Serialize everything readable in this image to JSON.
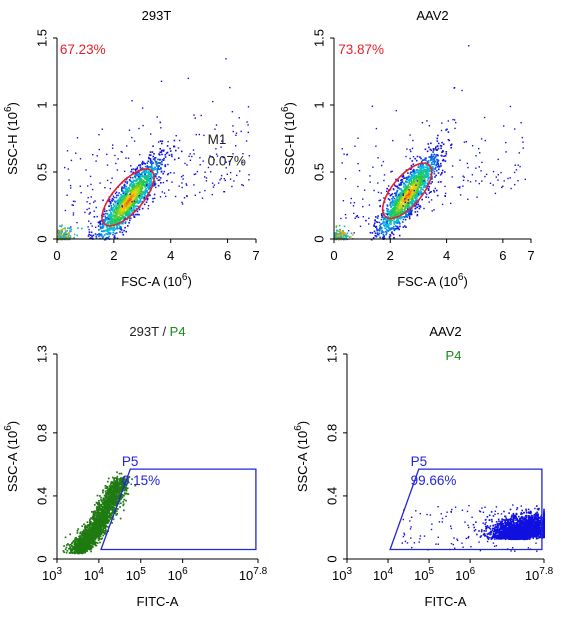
{
  "colors": {
    "gate_red": "#e8202a",
    "gate_blue": "#2424d8",
    "gate_green": "#1a8a1a",
    "gate_black": "#222222",
    "dot_blue": "#1010e0",
    "dot_green": "#1f7a12",
    "axis": "#000000"
  },
  "chart_data": [
    {
      "type": "scatter",
      "title": "293T",
      "title_parts": [],
      "xlabel": "FSC-A",
      "xlabel_unit": "(10",
      "xlabel_exp": "6",
      "xlabel_close": ")",
      "ylabel": "SSC-H",
      "ylabel_unit": "(10",
      "ylabel_exp": "6",
      "ylabel_close": ")",
      "xscale": "linear",
      "xlim": [
        0,
        7
      ],
      "ylim": [
        0,
        1.5
      ],
      "x_ticks": [
        {
          "v": 0,
          "label": "0"
        },
        {
          "v": 2,
          "label": "2"
        },
        {
          "v": 4,
          "label": "4"
        },
        {
          "v": 6,
          "label": "6"
        },
        {
          "v": 7,
          "label": "7"
        }
      ],
      "y_ticks": [
        {
          "v": 0,
          "label": "0"
        },
        {
          "v": 0.5,
          "label": "0.5"
        },
        {
          "v": 1,
          "label": "1"
        },
        {
          "v": 1.5,
          "label": "1.5"
        }
      ],
      "cloud": {
        "mode": "density",
        "cx": 2.5,
        "cy": 0.29,
        "n": 1600,
        "spread_major": 1.05,
        "spread_minor": 0.075,
        "tilt": 0.24,
        "sparse": 260
      },
      "gates": [
        {
          "name": "",
          "pct": "67.23%",
          "shape": "ellipse",
          "color": "gate_red",
          "cx": 2.5,
          "cy": 0.31,
          "rx": 1.25,
          "ry": 0.11,
          "tilt": 0.24
        }
      ],
      "labels": [
        {
          "text": "67.23%",
          "color": "gate_red",
          "x": 0.1,
          "y": 1.38
        },
        {
          "text": "M1",
          "color": "gate_black",
          "x": 5.3,
          "y": 0.71
        },
        {
          "text": "0.07%",
          "color": "gate_black",
          "x": 5.3,
          "y": 0.55
        }
      ]
    },
    {
      "type": "scatter",
      "title": "AAV2",
      "title_parts": [],
      "xlabel": "FSC-A",
      "xlabel_unit": "(10",
      "xlabel_exp": "6",
      "xlabel_close": ")",
      "ylabel": "SSC-H",
      "ylabel_unit": "(10",
      "ylabel_exp": "6",
      "ylabel_close": ")",
      "xscale": "linear",
      "xlim": [
        0,
        7
      ],
      "ylim": [
        0,
        1.5
      ],
      "x_ticks": [
        {
          "v": 0,
          "label": "0"
        },
        {
          "v": 2,
          "label": "2"
        },
        {
          "v": 4,
          "label": "4"
        },
        {
          "v": 6,
          "label": "6"
        },
        {
          "v": 7,
          "label": "7"
        }
      ],
      "y_ticks": [
        {
          "v": 0,
          "label": "0"
        },
        {
          "v": 0.5,
          "label": "0.5"
        },
        {
          "v": 1,
          "label": "1"
        },
        {
          "v": 1.5,
          "label": "1.5"
        }
      ],
      "cloud": {
        "mode": "density",
        "cx": 2.6,
        "cy": 0.33,
        "n": 1500,
        "spread_major": 1.0,
        "spread_minor": 0.075,
        "tilt": 0.25,
        "sparse": 220
      },
      "gates": [
        {
          "name": "",
          "pct": "73.87%",
          "shape": "ellipse",
          "color": "gate_red",
          "cx": 2.6,
          "cy": 0.36,
          "rx": 1.2,
          "ry": 0.11,
          "tilt": 0.25
        }
      ],
      "labels": [
        {
          "text": "73.87%",
          "color": "gate_red",
          "x": 0.15,
          "y": 1.38
        }
      ]
    },
    {
      "type": "scatter",
      "title": "",
      "title_parts": [
        {
          "text": "293T",
          "color": "gate_black"
        },
        {
          "text": " / ",
          "color": "gate_black"
        },
        {
          "text": "P4",
          "color": "gate_green"
        }
      ],
      "xlabel": "FITC-A",
      "xlabel_unit": "",
      "xlabel_exp": "",
      "xlabel_close": "",
      "ylabel": "SSC-A",
      "ylabel_unit": "(10",
      "ylabel_exp": "6",
      "ylabel_close": ")",
      "xscale": "log",
      "xlim": [
        3,
        7.8
      ],
      "ylim": [
        0,
        1.3
      ],
      "x_ticks": [
        {
          "v": 3,
          "label": "10",
          "exp": "3"
        },
        {
          "v": 4,
          "label": "10",
          "exp": "4"
        },
        {
          "v": 5,
          "label": "10",
          "exp": "5"
        },
        {
          "v": 6,
          "label": "10",
          "exp": "6"
        },
        {
          "v": 7.8,
          "label": "10",
          "exp": "7.8"
        }
      ],
      "y_ticks": [
        {
          "v": 0,
          "label": "0"
        },
        {
          "v": 0.4,
          "label": "0.4"
        },
        {
          "v": 0.8,
          "label": "0.8"
        },
        {
          "v": 1.3,
          "label": "1.3"
        }
      ],
      "cloud": {
        "mode": "green",
        "n": 2300
      },
      "gates": [
        {
          "name": "P5",
          "pct": "0.15%",
          "shape": "poly",
          "color": "gate_blue",
          "pts": [
            [
              4.05,
              0.06
            ],
            [
              7.75,
              0.06
            ],
            [
              7.75,
              0.57
            ],
            [
              4.75,
              0.57
            ]
          ]
        }
      ],
      "labels": [
        {
          "text": "P5",
          "color": "gate_blue",
          "x": 4.55,
          "y": 0.59
        },
        {
          "text": "0.15%",
          "color": "gate_blue",
          "x": 4.55,
          "y": 0.47
        }
      ]
    },
    {
      "type": "scatter",
      "title": "AAV2",
      "title_parts": [],
      "subtitle": "P4",
      "xlabel": "FITC-A",
      "xlabel_unit": "",
      "xlabel_exp": "",
      "xlabel_close": "",
      "ylabel": "SSC-A",
      "ylabel_unit": "(10",
      "ylabel_exp": "6",
      "ylabel_close": ")",
      "xscale": "log",
      "xlim": [
        3,
        7.8
      ],
      "ylim": [
        0,
        1.3
      ],
      "x_ticks": [
        {
          "v": 3,
          "label": "10",
          "exp": "3"
        },
        {
          "v": 4,
          "label": "10",
          "exp": "4"
        },
        {
          "v": 5,
          "label": "10",
          "exp": "5"
        },
        {
          "v": 6,
          "label": "10",
          "exp": "6"
        },
        {
          "v": 7.8,
          "label": "10",
          "exp": "7.8"
        }
      ],
      "y_ticks": [
        {
          "v": 0,
          "label": "0"
        },
        {
          "v": 0.4,
          "label": "0.4"
        },
        {
          "v": 0.8,
          "label": "0.8"
        },
        {
          "v": 1.3,
          "label": "1.3"
        }
      ],
      "cloud": {
        "mode": "blue",
        "n": 2600
      },
      "gates": [
        {
          "name": "P5",
          "pct": "99.66%",
          "shape": "poly",
          "color": "gate_blue",
          "pts": [
            [
              4.05,
              0.06
            ],
            [
              7.75,
              0.06
            ],
            [
              7.75,
              0.57
            ],
            [
              4.75,
              0.57
            ]
          ]
        }
      ],
      "labels": [
        {
          "text": "P5",
          "color": "gate_blue",
          "x": 4.55,
          "y": 0.59
        },
        {
          "text": "99.66%",
          "color": "gate_blue",
          "x": 4.55,
          "y": 0.47
        }
      ]
    }
  ]
}
